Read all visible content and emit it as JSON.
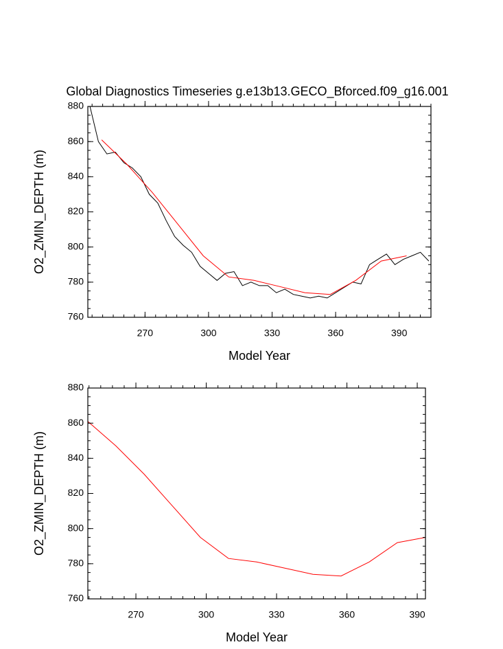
{
  "chart_data": [
    {
      "type": "line",
      "title": "Global Diagnostics Timeseries g.e13b13.GECO_Bforced.f09_g16.001",
      "xlabel": "Model Year",
      "ylabel": "O2_ZMIN_DEPTH (m)",
      "xlim": [
        243,
        405
      ],
      "ylim": [
        760,
        880
      ],
      "xticks": [
        270,
        300,
        330,
        360,
        390
      ],
      "yticks": [
        760,
        780,
        800,
        820,
        840,
        860,
        880
      ],
      "series": [
        {
          "color": "#000000",
          "x": [
            244,
            248,
            252,
            256,
            260,
            264,
            268,
            272,
            276,
            280,
            284,
            288,
            292,
            296,
            300,
            304,
            308,
            312,
            316,
            320,
            324,
            328,
            332,
            336,
            340,
            344,
            348,
            352,
            356,
            360,
            364,
            368,
            372,
            376,
            380,
            384,
            388,
            392,
            396,
            400,
            404
          ],
          "values": [
            880,
            860,
            853,
            854,
            848,
            845,
            840,
            830,
            825,
            815,
            806,
            801,
            797,
            789,
            785,
            781,
            785,
            786,
            778,
            780,
            778,
            778,
            774,
            776,
            773,
            772,
            771,
            772,
            771,
            774,
            777,
            780,
            779,
            790,
            793,
            796,
            790,
            793,
            795,
            797,
            792
          ]
        },
        {
          "color": "#ff0000",
          "x": [
            249.5,
            261.5,
            273.5,
            285.5,
            297.5,
            309.5,
            321.5,
            333.5,
            345.5,
            357.5,
            369.5,
            381.5,
            393.5
          ],
          "values": [
            861,
            847,
            831,
            813,
            795,
            783,
            781,
            777.5,
            774,
            773,
            781,
            792,
            795
          ]
        }
      ]
    },
    {
      "type": "line",
      "xlabel": "Model Year",
      "ylabel": "O2_ZMIN_DEPTH (m)",
      "xlim": [
        249.5,
        393.5
      ],
      "ylim": [
        760,
        880
      ],
      "xticks": [
        270,
        300,
        330,
        360,
        390
      ],
      "yticks": [
        760,
        780,
        800,
        820,
        840,
        860,
        880
      ],
      "series": [
        {
          "color": "#ff0000",
          "x": [
            249.5,
            261.5,
            273.5,
            285.5,
            297.5,
            309.5,
            321.5,
            333.5,
            345.5,
            357.5,
            369.5,
            381.5,
            393.5
          ],
          "values": [
            861,
            847,
            831,
            813,
            795,
            783,
            781,
            777.5,
            774,
            773,
            781,
            792,
            795
          ]
        }
      ]
    }
  ]
}
